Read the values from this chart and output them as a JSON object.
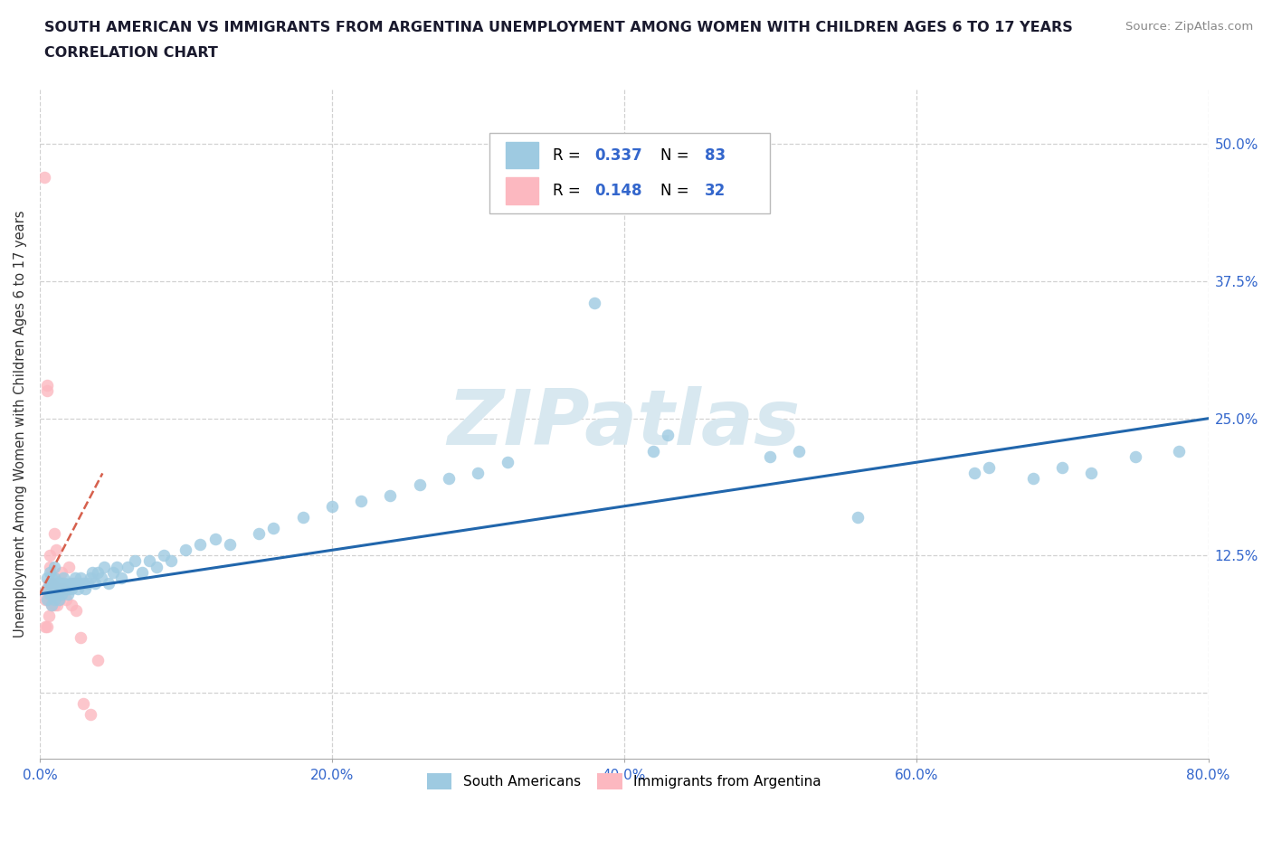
{
  "title_line1": "SOUTH AMERICAN VS IMMIGRANTS FROM ARGENTINA UNEMPLOYMENT AMONG WOMEN WITH CHILDREN AGES 6 TO 17 YEARS",
  "title_line2": "CORRELATION CHART",
  "source_text": "Source: ZipAtlas.com",
  "ylabel": "Unemployment Among Women with Children Ages 6 to 17 years",
  "xlim": [
    0.0,
    0.8
  ],
  "ylim": [
    -0.06,
    0.55
  ],
  "xtick_vals": [
    0.0,
    0.2,
    0.4,
    0.6,
    0.8
  ],
  "xticklabels": [
    "0.0%",
    "20.0%",
    "40.0%",
    "60.0%",
    "80.0%"
  ],
  "ytick_vals": [
    0.0,
    0.125,
    0.25,
    0.375,
    0.5
  ],
  "yticklabels": [
    "",
    "12.5%",
    "25.0%",
    "37.5%",
    "50.0%"
  ],
  "grid_color": "#cccccc",
  "background_color": "#ffffff",
  "blue_color": "#9ecae1",
  "pink_color": "#fcb8c0",
  "blue_line_color": "#2166ac",
  "pink_line_color": "#d6604d",
  "blue_R": 0.337,
  "blue_N": 83,
  "pink_R": 0.148,
  "pink_N": 32,
  "legend_label_blue": "South Americans",
  "legend_label_pink": "Immigrants from Argentina",
  "tick_color": "#3366cc",
  "title_color": "#1a1a2e",
  "watermark": "ZIPatlas",
  "blue_x": [
    0.005,
    0.005,
    0.005,
    0.007,
    0.007,
    0.007,
    0.008,
    0.008,
    0.008,
    0.009,
    0.009,
    0.01,
    0.01,
    0.01,
    0.01,
    0.012,
    0.012,
    0.013,
    0.013,
    0.014,
    0.015,
    0.015,
    0.016,
    0.016,
    0.017,
    0.018,
    0.019,
    0.02,
    0.021,
    0.022,
    0.023,
    0.024,
    0.025,
    0.026,
    0.027,
    0.028,
    0.03,
    0.031,
    0.033,
    0.035,
    0.036,
    0.038,
    0.04,
    0.042,
    0.044,
    0.047,
    0.05,
    0.053,
    0.056,
    0.06,
    0.065,
    0.07,
    0.075,
    0.08,
    0.085,
    0.09,
    0.1,
    0.11,
    0.12,
    0.13,
    0.15,
    0.16,
    0.18,
    0.2,
    0.22,
    0.24,
    0.26,
    0.28,
    0.3,
    0.32,
    0.38,
    0.42,
    0.43,
    0.5,
    0.52,
    0.56,
    0.64,
    0.65,
    0.68,
    0.7,
    0.72,
    0.75,
    0.78
  ],
  "blue_y": [
    0.085,
    0.105,
    0.095,
    0.09,
    0.1,
    0.11,
    0.08,
    0.095,
    0.105,
    0.09,
    0.1,
    0.085,
    0.095,
    0.105,
    0.115,
    0.09,
    0.1,
    0.085,
    0.095,
    0.1,
    0.09,
    0.1,
    0.095,
    0.105,
    0.1,
    0.095,
    0.09,
    0.095,
    0.1,
    0.095,
    0.1,
    0.105,
    0.1,
    0.095,
    0.1,
    0.105,
    0.1,
    0.095,
    0.1,
    0.105,
    0.11,
    0.1,
    0.11,
    0.105,
    0.115,
    0.1,
    0.11,
    0.115,
    0.105,
    0.115,
    0.12,
    0.11,
    0.12,
    0.115,
    0.125,
    0.12,
    0.13,
    0.135,
    0.14,
    0.135,
    0.145,
    0.15,
    0.16,
    0.17,
    0.175,
    0.18,
    0.19,
    0.195,
    0.2,
    0.21,
    0.355,
    0.22,
    0.235,
    0.215,
    0.22,
    0.16,
    0.2,
    0.205,
    0.195,
    0.205,
    0.2,
    0.215,
    0.22
  ],
  "pink_x": [
    0.003,
    0.004,
    0.004,
    0.005,
    0.005,
    0.005,
    0.005,
    0.006,
    0.006,
    0.006,
    0.007,
    0.007,
    0.007,
    0.008,
    0.008,
    0.009,
    0.01,
    0.01,
    0.011,
    0.012,
    0.013,
    0.014,
    0.015,
    0.016,
    0.018,
    0.02,
    0.022,
    0.025,
    0.028,
    0.03,
    0.035,
    0.04
  ],
  "pink_y": [
    0.47,
    0.085,
    0.06,
    0.28,
    0.275,
    0.095,
    0.06,
    0.1,
    0.085,
    0.07,
    0.115,
    0.095,
    0.125,
    0.09,
    0.08,
    0.1,
    0.145,
    0.08,
    0.13,
    0.08,
    0.095,
    0.085,
    0.11,
    0.095,
    0.085,
    0.115,
    0.08,
    0.075,
    0.05,
    -0.01,
    -0.02,
    0.03
  ],
  "blue_line_x0": 0.0,
  "blue_line_x1": 0.8,
  "blue_line_y0": 0.09,
  "blue_line_y1": 0.25,
  "pink_line_x0": 0.0,
  "pink_line_x1": 0.043,
  "pink_line_y0": 0.09,
  "pink_line_y1": 0.2
}
